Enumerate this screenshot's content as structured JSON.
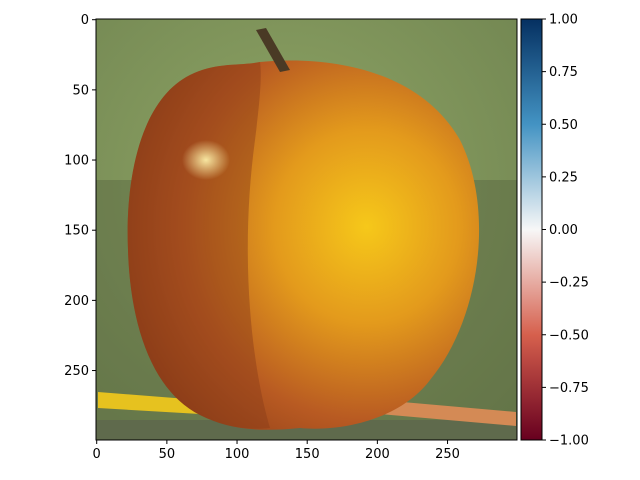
{
  "chart_data": [
    {
      "type": "heatmap",
      "content": "photograph (blended apple and orange) shown with imshow",
      "image_size": [
        300,
        300
      ],
      "xticks": [
        0,
        50,
        100,
        150,
        200,
        250
      ],
      "yticks": [
        0,
        50,
        100,
        150,
        200,
        250
      ],
      "xlim": [
        0,
        299
      ],
      "ylim": [
        299,
        0
      ],
      "title": "",
      "xlabel": "",
      "ylabel": ""
    },
    {
      "type": "colorbar",
      "colormap": "RdBu",
      "range": [
        -1.0,
        1.0
      ],
      "ticks": [
        1.0,
        0.75,
        0.5,
        0.25,
        0.0,
        -0.25,
        -0.5,
        -0.75,
        -1.0
      ],
      "tick_labels": [
        "1.00",
        "0.75",
        "0.50",
        "0.25",
        "0.00",
        "−0.25",
        "−0.50",
        "−0.75",
        "−1.00"
      ],
      "colors": {
        "top": "#053061",
        "upper": "#4393c3",
        "middle": "#f7f7f7",
        "lower": "#d6604d",
        "bottom": "#67001f"
      }
    }
  ],
  "image_colors": {
    "background": "#7e9459",
    "apple_dark": "#8a3b18",
    "apple_mid": "#b85a22",
    "orange_mid": "#e39a1c",
    "orange_bright": "#f6c81a",
    "highlight": "#f7e6a0",
    "stem": "#4a3a25",
    "pencil": "#e6c21f"
  }
}
